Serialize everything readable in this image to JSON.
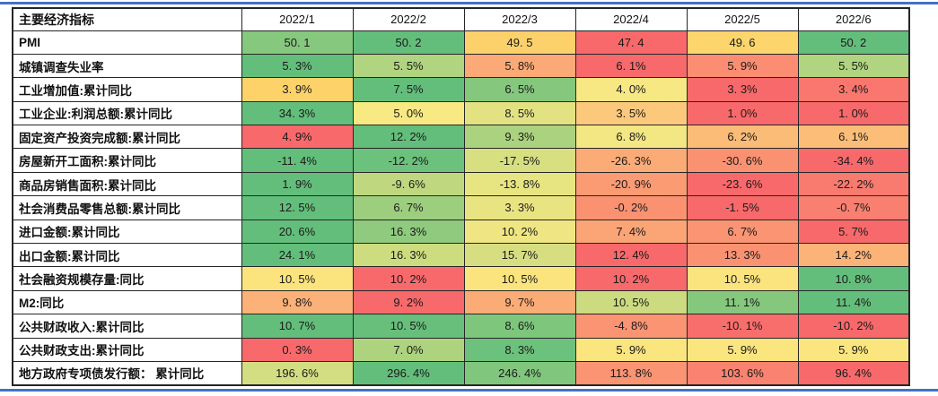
{
  "page": {
    "background": "#ffffff"
  },
  "rules": {
    "color": "#4472C4"
  },
  "table": {
    "border_color": "#262626",
    "header": {
      "label": "主要经济指标",
      "columns": [
        "2022/1",
        "2022/2",
        "2022/3",
        "2022/4",
        "2022/5",
        "2022/6"
      ]
    },
    "rows": [
      {
        "label": "PMI",
        "cells": [
          {
            "v": "50. 1",
            "bg": "#86C87D"
          },
          {
            "v": "50. 2",
            "bg": "#63BE7B"
          },
          {
            "v": "49. 5",
            "bg": "#FCD16B"
          },
          {
            "v": "47. 4",
            "bg": "#F8696B"
          },
          {
            "v": "49. 6",
            "bg": "#FCD56D"
          },
          {
            "v": "50. 2",
            "bg": "#63BE7B"
          }
        ]
      },
      {
        "label": "城镇调查失业率",
        "cells": [
          {
            "v": "5. 3%",
            "bg": "#63BE7B"
          },
          {
            "v": "5. 5%",
            "bg": "#B0D47F"
          },
          {
            "v": "5. 8%",
            "bg": "#FBA977"
          },
          {
            "v": "6. 1%",
            "bg": "#F8696B"
          },
          {
            "v": "5. 9%",
            "bg": "#FA8D72"
          },
          {
            "v": "5. 5%",
            "bg": "#B0D47F"
          }
        ]
      },
      {
        "label": "工业增加值:累计同比",
        "cells": [
          {
            "v": "3. 9%",
            "bg": "#FCD269"
          },
          {
            "v": "7. 5%",
            "bg": "#63BE7B"
          },
          {
            "v": "6. 5%",
            "bg": "#84C77D"
          },
          {
            "v": "4. 0%",
            "bg": "#F7E884"
          },
          {
            "v": "3. 3%",
            "bg": "#F8696B"
          },
          {
            "v": "3. 4%",
            "bg": "#F9776E"
          }
        ]
      },
      {
        "label": "工业企业:利润总额:累计同比",
        "cells": [
          {
            "v": "34. 3%",
            "bg": "#63BE7B"
          },
          {
            "v": "5. 0%",
            "bg": "#F9E983"
          },
          {
            "v": "8. 5%",
            "bg": "#E3E283"
          },
          {
            "v": "3. 5%",
            "bg": "#FCC97C"
          },
          {
            "v": "1. 0%",
            "bg": "#F8696B"
          },
          {
            "v": "1. 0%",
            "bg": "#F8696B"
          }
        ]
      },
      {
        "label": "固定资产投资完成额:累计同比",
        "cells": [
          {
            "v": "4. 9%",
            "bg": "#F8696B"
          },
          {
            "v": "12. 2%",
            "bg": "#63BE7B"
          },
          {
            "v": "9. 3%",
            "bg": "#ABD27F"
          },
          {
            "v": "6. 8%",
            "bg": "#F3E783"
          },
          {
            "v": "6. 2%",
            "bg": "#FBBC78"
          },
          {
            "v": "6. 1%",
            "bg": "#FBBD78"
          }
        ]
      },
      {
        "label": "房屋新开工面积:累计同比",
        "cells": [
          {
            "v": "-11. 4%",
            "bg": "#63BE7B"
          },
          {
            "v": "-12. 2%",
            "bg": "#6CC17C"
          },
          {
            "v": "-17. 5%",
            "bg": "#D8DF81"
          },
          {
            "v": "-26. 3%",
            "bg": "#FBAB76"
          },
          {
            "v": "-30. 6%",
            "bg": "#FA9272"
          },
          {
            "v": "-34. 4%",
            "bg": "#F8696B"
          }
        ]
      },
      {
        "label": "商品房销售面积:累计同比",
        "cells": [
          {
            "v": "1. 9%",
            "bg": "#63BE7B"
          },
          {
            "v": "-9. 6%",
            "bg": "#BFD880"
          },
          {
            "v": "-13. 8%",
            "bg": "#E7E482"
          },
          {
            "v": "-20. 9%",
            "bg": "#FA9B74"
          },
          {
            "v": "-23. 6%",
            "bg": "#F8696B"
          },
          {
            "v": "-22. 2%",
            "bg": "#F97A6E"
          }
        ]
      },
      {
        "label": "社会消费品零售总额:累计同比",
        "cells": [
          {
            "v": "12. 5%",
            "bg": "#63BE7B"
          },
          {
            "v": "6. 7%",
            "bg": "#9DCE7E"
          },
          {
            "v": "3. 3%",
            "bg": "#E9E482"
          },
          {
            "v": "-0. 2%",
            "bg": "#FA9272"
          },
          {
            "v": "-1. 5%",
            "bg": "#F8696B"
          },
          {
            "v": "-0. 7%",
            "bg": "#F97F70"
          }
        ]
      },
      {
        "label": "进口金额:累计同比",
        "cells": [
          {
            "v": "20. 6%",
            "bg": "#63BE7B"
          },
          {
            "v": "16. 3%",
            "bg": "#8FCA7E"
          },
          {
            "v": "10. 2%",
            "bg": "#EFE683"
          },
          {
            "v": "7. 4%",
            "bg": "#FBA576"
          },
          {
            "v": "6. 7%",
            "bg": "#FA9473"
          },
          {
            "v": "5. 7%",
            "bg": "#F8696B"
          }
        ]
      },
      {
        "label": "出口金额:累计同比",
        "cells": [
          {
            "v": "24. 1%",
            "bg": "#63BE7B"
          },
          {
            "v": "16. 3%",
            "bg": "#CEDC80"
          },
          {
            "v": "15. 7%",
            "bg": "#D6DE81"
          },
          {
            "v": "12. 4%",
            "bg": "#F8696B"
          },
          {
            "v": "13. 3%",
            "bg": "#FA9272"
          },
          {
            "v": "14. 2%",
            "bg": "#FBB377"
          }
        ]
      },
      {
        "label": "社会融资规模存量:同比",
        "cells": [
          {
            "v": "10. 5%",
            "bg": "#FBE47E"
          },
          {
            "v": "10. 2%",
            "bg": "#F8696B"
          },
          {
            "v": "10. 5%",
            "bg": "#FBE47E"
          },
          {
            "v": "10. 2%",
            "bg": "#F8696B"
          },
          {
            "v": "10. 5%",
            "bg": "#FBE47E"
          },
          {
            "v": "10. 8%",
            "bg": "#63BE7B"
          }
        ]
      },
      {
        "label": "M2:同比",
        "cells": [
          {
            "v": "9. 8%",
            "bg": "#FBB177"
          },
          {
            "v": "9. 2%",
            "bg": "#F8696B"
          },
          {
            "v": "9. 7%",
            "bg": "#FBAC76"
          },
          {
            "v": "10. 5%",
            "bg": "#CCDB80"
          },
          {
            "v": "11. 1%",
            "bg": "#85C87D"
          },
          {
            "v": "11. 4%",
            "bg": "#63BE7B"
          }
        ]
      },
      {
        "label": "公共财政收入:累计同比",
        "cells": [
          {
            "v": "10. 7%",
            "bg": "#63BE7B"
          },
          {
            "v": "10. 5%",
            "bg": "#67BF7B"
          },
          {
            "v": "8. 6%",
            "bg": "#7FC67D"
          },
          {
            "v": "-4. 8%",
            "bg": "#FA9473"
          },
          {
            "v": "-10. 1%",
            "bg": "#F86E6C"
          },
          {
            "v": "-10. 2%",
            "bg": "#F8696B"
          }
        ]
      },
      {
        "label": "公共财政支出:累计同比",
        "cells": [
          {
            "v": "0. 3%",
            "bg": "#F8696B"
          },
          {
            "v": "7. 0%",
            "bg": "#AED37F"
          },
          {
            "v": "8. 3%",
            "bg": "#6CC17C"
          },
          {
            "v": "5. 9%",
            "bg": "#FBE57F"
          },
          {
            "v": "5. 9%",
            "bg": "#FBE57F"
          },
          {
            "v": "5. 9%",
            "bg": "#FBE57F"
          }
        ]
      },
      {
        "label": "地方政府专项债发行额： 累计同比",
        "cells": [
          {
            "v": "196. 6%",
            "bg": "#D3DD81"
          },
          {
            "v": "296. 4%",
            "bg": "#63BE7B"
          },
          {
            "v": "246. 4%",
            "bg": "#81C67D"
          },
          {
            "v": "113. 8%",
            "bg": "#FA9473"
          },
          {
            "v": "103. 6%",
            "bg": "#F98370"
          },
          {
            "v": "96. 4%",
            "bg": "#F8696B"
          }
        ]
      }
    ]
  }
}
